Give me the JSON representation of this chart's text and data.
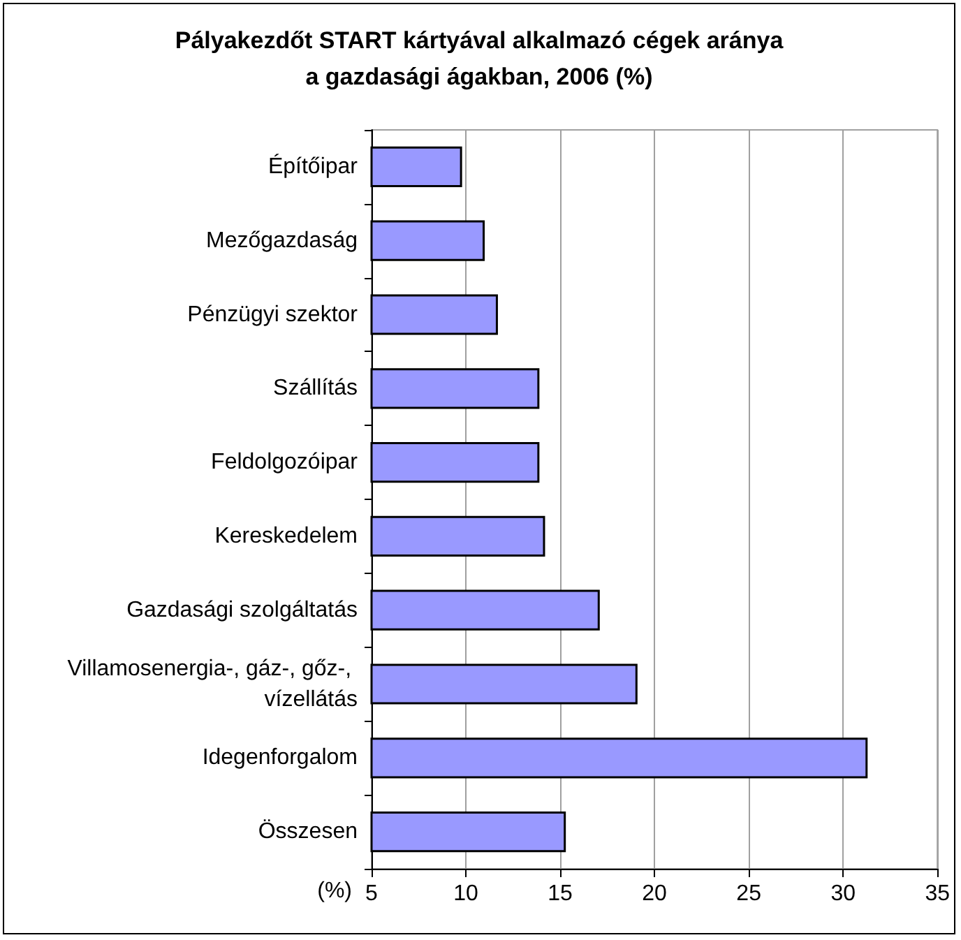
{
  "chart_data": {
    "type": "bar",
    "orientation": "horizontal",
    "title": "Pályakezdőt START kártyával alkalmazó cégek aránya\na gazdasági ágakban, 2006 (%)",
    "xlabel": "(%)",
    "categories": [
      "Építőipar",
      "Mezőgazdaság",
      "Pénzügyi szektor",
      "Szállítás",
      "Feldolgozóipar",
      "Kereskedelem",
      "Gazdasági szolgáltatás",
      "Villamosenergia-, gáz-, gőz-, vízellátás",
      "Idegenforgalom",
      "Összesen"
    ],
    "values": [
      9.8,
      11.0,
      11.7,
      13.9,
      13.9,
      14.2,
      17.1,
      19.1,
      31.3,
      15.3
    ],
    "color": "#9999ff",
    "xlim": [
      5,
      35
    ],
    "xticks": [
      5,
      10,
      15,
      20,
      25,
      30,
      35
    ],
    "grid": "x"
  }
}
